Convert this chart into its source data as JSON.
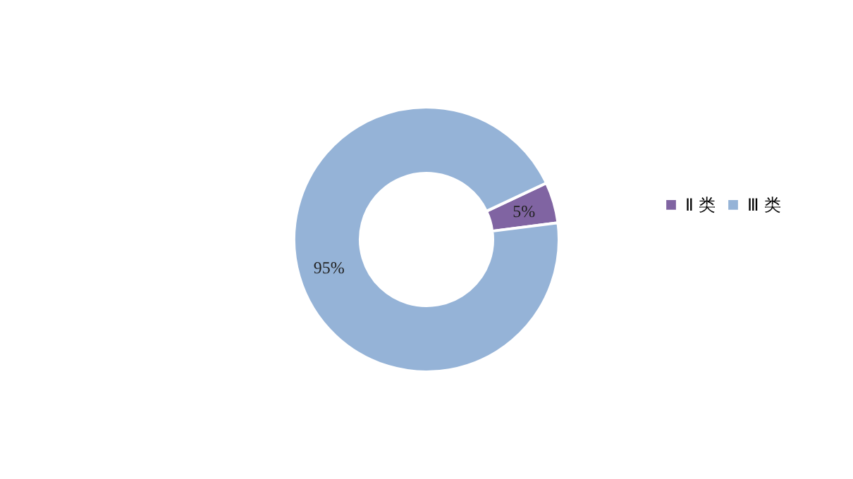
{
  "chart_data": {
    "type": "donut",
    "categories": [
      "Ⅱ 类",
      "Ⅲ 类"
    ],
    "values": [
      5,
      95
    ],
    "colors": [
      "#8064a2",
      "#95b3d7"
    ],
    "value_labels": [
      "5%",
      "95%"
    ],
    "legend": "right"
  }
}
